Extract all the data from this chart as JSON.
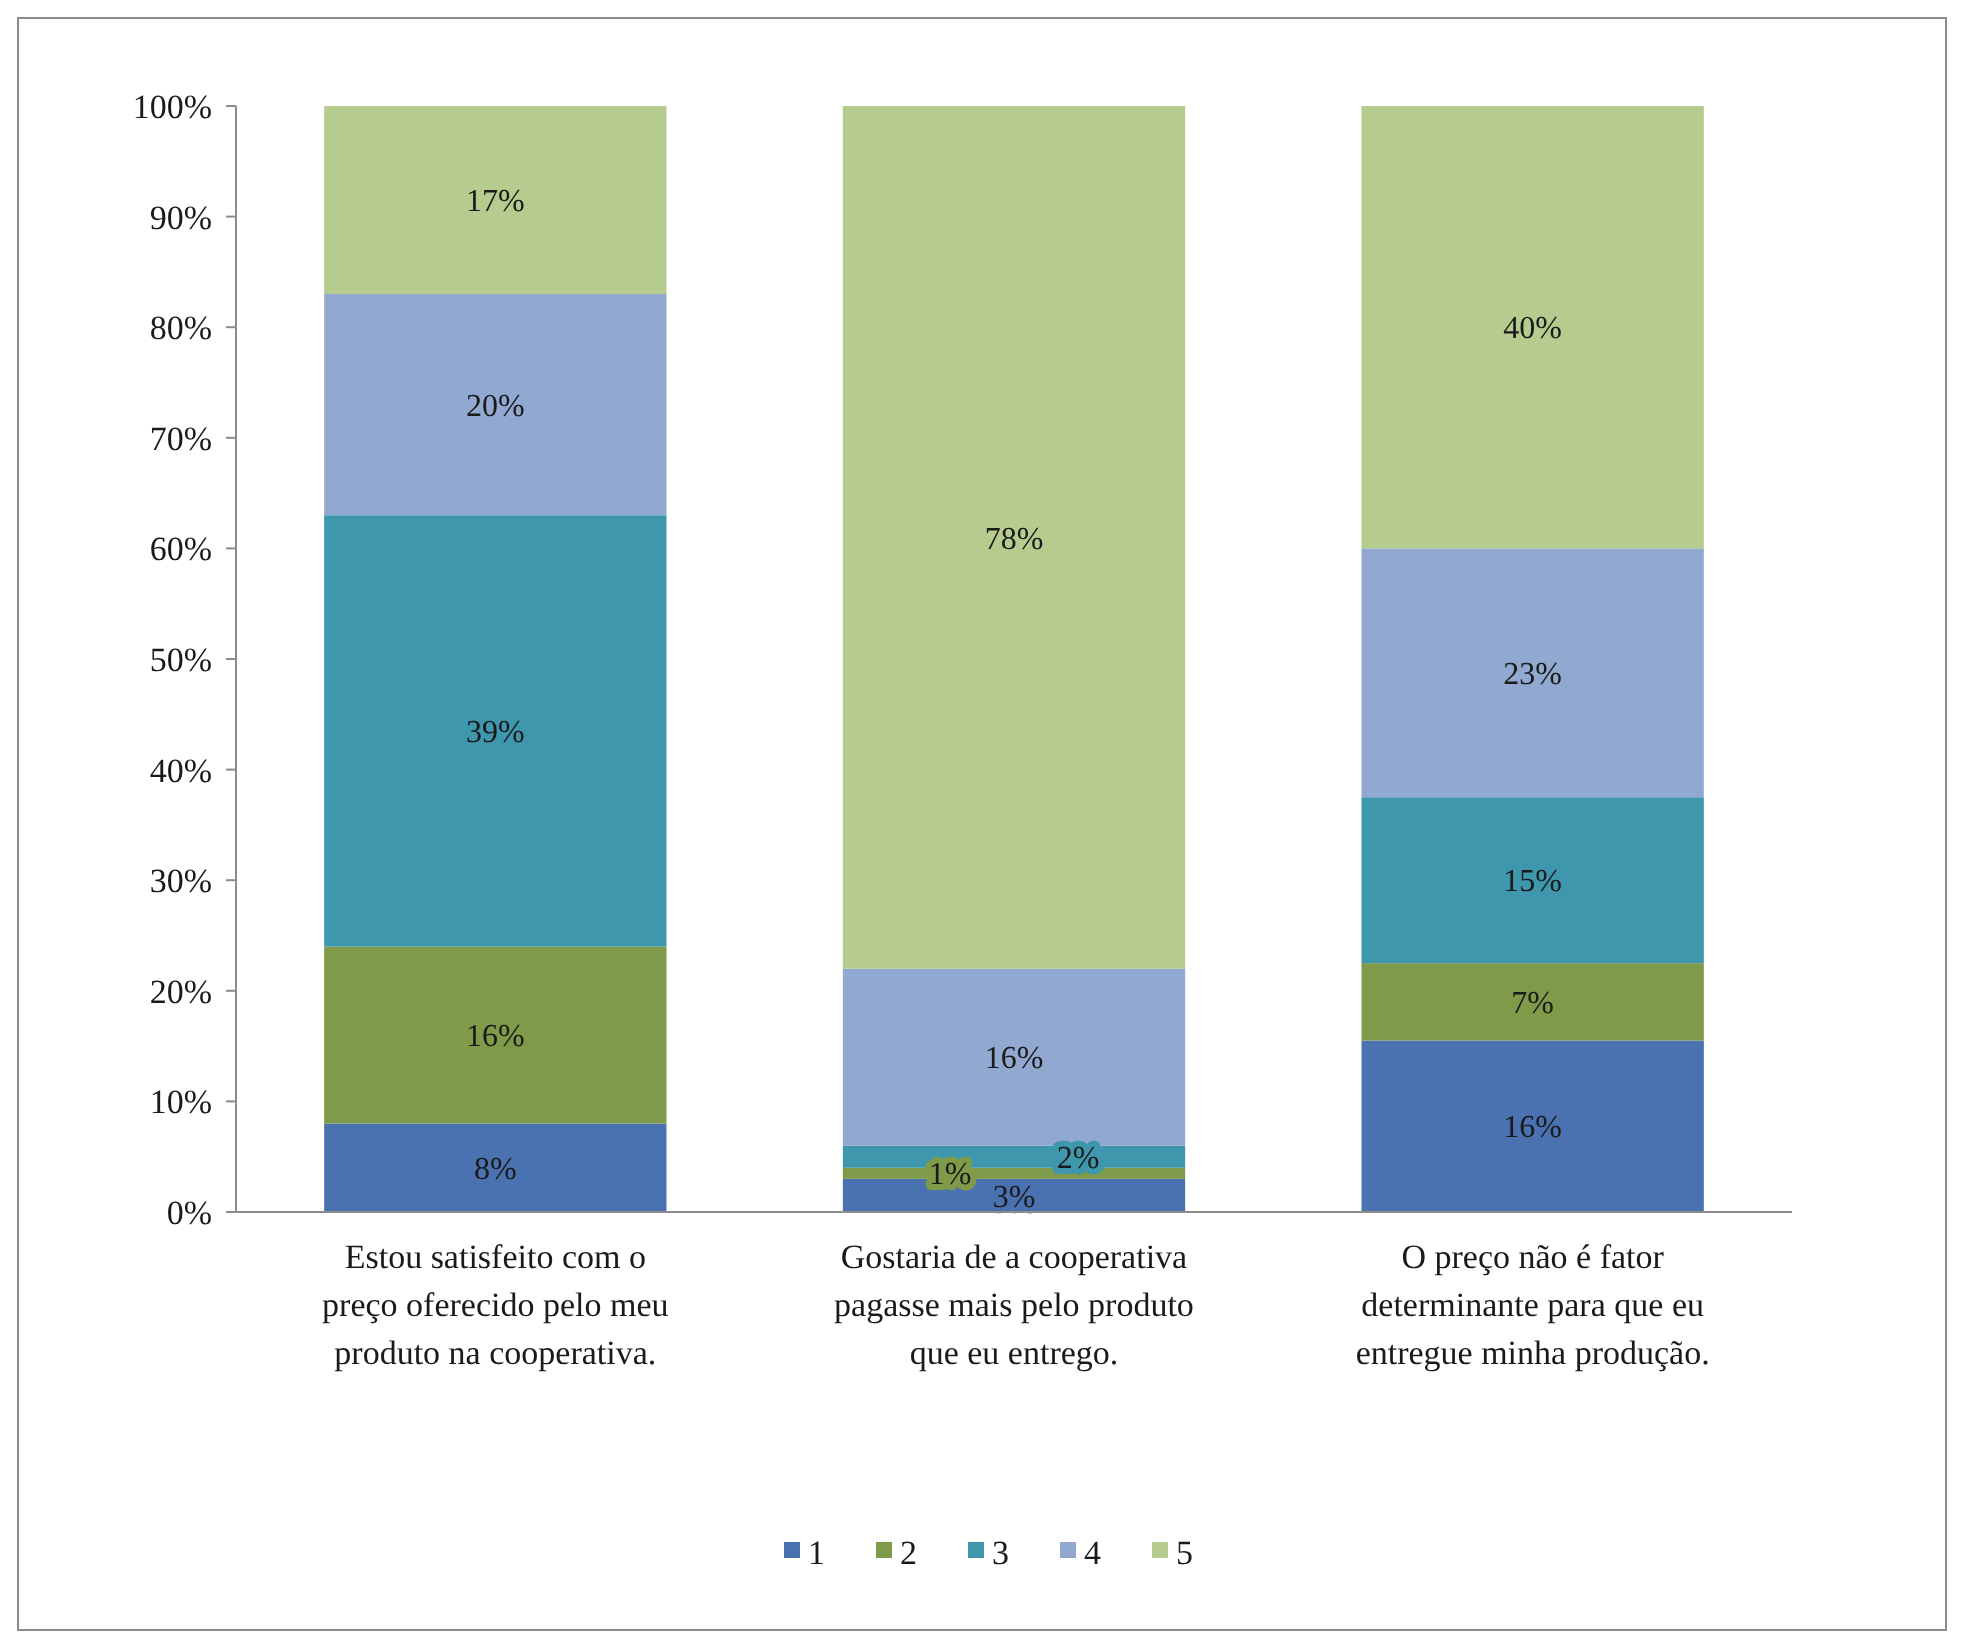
{
  "chart_data": {
    "type": "bar",
    "stacked": true,
    "categories": [
      "Estou satisfeito com o preço oferecido pelo meu produto na cooperativa.",
      "Gostaria de a cooperativa pagasse mais pelo produto que eu entrego.",
      "O preço não é fator determinante para que eu entregue minha produção."
    ],
    "series": [
      {
        "name": "1",
        "color": "#4a72b0",
        "values": [
          8,
          3,
          15.5
        ],
        "value_labels": [
          "8%",
          "3%",
          "16%"
        ]
      },
      {
        "name": "2",
        "color": "#7f9a48",
        "values": [
          16,
          1,
          7
        ],
        "value_labels": [
          "16%",
          "1%",
          "7%"
        ]
      },
      {
        "name": "3",
        "color": "#3e97ad",
        "values": [
          39,
          2,
          15
        ],
        "value_labels": [
          "39%",
          "2%",
          "15%"
        ]
      },
      {
        "name": "4",
        "color": "#91a8d0",
        "values": [
          20,
          16,
          22.5
        ],
        "value_labels": [
          "20%",
          "16%",
          "23%"
        ]
      },
      {
        "name": "5",
        "color": "#b5cc8e",
        "values": [
          17,
          78,
          40
        ],
        "value_labels": [
          "17%",
          "78%",
          "40%"
        ]
      }
    ],
    "ylim": [
      0,
      100
    ],
    "yticks": [
      {
        "value": 0,
        "label": "0%"
      },
      {
        "value": 10,
        "label": "10%"
      },
      {
        "value": 20,
        "label": "20%"
      },
      {
        "value": 30,
        "label": "30%"
      },
      {
        "value": 40,
        "label": "40%"
      },
      {
        "value": 50,
        "label": "50%"
      },
      {
        "value": 60,
        "label": "60%"
      },
      {
        "value": 70,
        "label": "70%"
      },
      {
        "value": 80,
        "label": "80%"
      },
      {
        "value": 90,
        "label": "90%"
      },
      {
        "value": 100,
        "label": "100%"
      }
    ],
    "grid": false,
    "legend": "bottom"
  }
}
